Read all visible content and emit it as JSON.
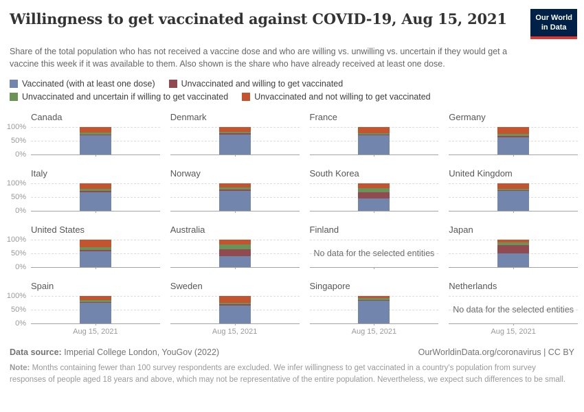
{
  "header": {
    "title": "Willingness to get vaccinated against COVID-19, Aug 15, 2021",
    "subtitle": "Share of the total population who has not received a vaccine dose and who are willing vs. unwilling vs. uncertain if they would get a vaccine this week if it was available to them. Also shown is the share who have already received at least one dose.",
    "logo": {
      "line1": "Our World",
      "line2": "in Data",
      "bg_color": "#002147",
      "accent_color": "#e0342c"
    }
  },
  "legend": {
    "items": [
      {
        "key": "vaccinated",
        "label": "Vaccinated (with at least one dose)",
        "color": "#7286ad"
      },
      {
        "key": "willing",
        "label": "Unvaccinated and willing to get vaccinated",
        "color": "#904a50"
      },
      {
        "key": "uncertain",
        "label": "Unvaccinated and uncertain if willing to get vaccinated",
        "color": "#6b9257"
      },
      {
        "key": "not_willing",
        "label": "Unvaccinated and not willing to get vaccinated",
        "color": "#c4532f"
      }
    ]
  },
  "chart_data": {
    "type": "bar",
    "variant": "stacked-small-multiples",
    "x": [
      "Aug 15, 2021"
    ],
    "x_label": "Aug 15, 2021",
    "ylim": [
      0,
      100
    ],
    "yticks": [
      "100%",
      "50%",
      "0%"
    ],
    "grid": "dashed horizontal gridlines at 50% and 100%",
    "legend_position": "top",
    "no_data_label": "No data for the selected entities",
    "series_order_bottom_to_top": [
      "vaccinated",
      "willing",
      "uncertain",
      "not_willing"
    ],
    "charts": [
      {
        "country": "Canada",
        "vaccinated": 70,
        "willing": 3,
        "uncertain": 6,
        "not_willing": 21
      },
      {
        "country": "Denmark",
        "vaccinated": 73,
        "willing": 3,
        "uncertain": 6,
        "not_willing": 18
      },
      {
        "country": "France",
        "vaccinated": 69,
        "willing": 3,
        "uncertain": 4,
        "not_willing": 23
      },
      {
        "country": "Germany",
        "vaccinated": 63,
        "willing": 4,
        "uncertain": 7,
        "not_willing": 26
      },
      {
        "country": "Italy",
        "vaccinated": 68,
        "willing": 5,
        "uncertain": 7,
        "not_willing": 20
      },
      {
        "country": "Norway",
        "vaccinated": 73,
        "willing": 4,
        "uncertain": 8,
        "not_willing": 15
      },
      {
        "country": "South Korea",
        "vaccinated": 45,
        "willing": 22,
        "uncertain": 14,
        "not_willing": 19
      },
      {
        "country": "United Kingdom",
        "vaccinated": 71,
        "willing": 3,
        "uncertain": 5,
        "not_willing": 21
      },
      {
        "country": "United States",
        "vaccinated": 58,
        "willing": 5,
        "uncertain": 10,
        "not_willing": 27
      },
      {
        "country": "Australia",
        "vaccinated": 40,
        "willing": 25,
        "uncertain": 16,
        "not_willing": 19
      },
      {
        "country": "Finland",
        "no_data": true
      },
      {
        "country": "Japan",
        "vaccinated": 49,
        "willing": 30,
        "uncertain": 10,
        "not_willing": 10
      },
      {
        "country": "Spain",
        "vaccinated": 74,
        "willing": 3,
        "uncertain": 7,
        "not_willing": 16
      },
      {
        "country": "Sweden",
        "vaccinated": 65,
        "willing": 4,
        "uncertain": 6,
        "not_willing": 25
      },
      {
        "country": "Singapore",
        "vaccinated": 82,
        "willing": 3,
        "uncertain": 7,
        "not_willing": 8
      },
      {
        "country": "Netherlands",
        "no_data": true
      }
    ]
  },
  "footer": {
    "datasource_label": "Data source:",
    "datasource_value": " Imperial College London, YouGov (2022)",
    "link": "OurWorldinData.org/coronavirus | CC BY",
    "note_label": "Note:",
    "note_value": " Months containing fewer than 100 survey respondents are excluded. We infer willingness to get vaccinated in a country's population from survey responses of people aged 18 years and above, which may not be representative of the entire population. Nevertheless, we expect such differences to be small."
  }
}
